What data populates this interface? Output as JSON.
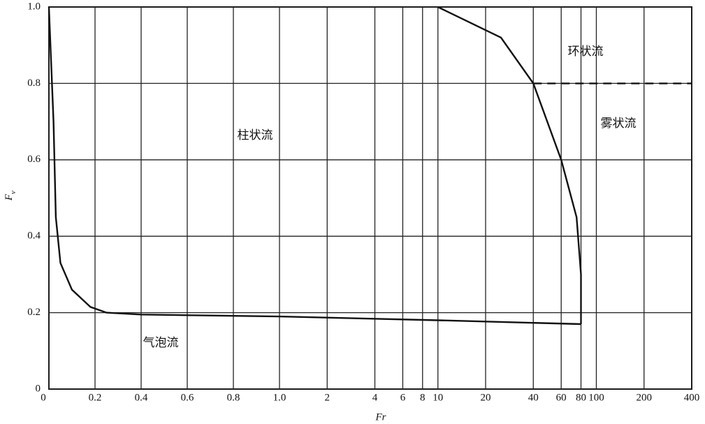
{
  "chart_data": {
    "type": "line",
    "xlabel": "Fr",
    "ylabel": {
      "main": "F",
      "sub": "v"
    },
    "xscale": "linear-log",
    "xlim": [
      0,
      400
    ],
    "xticks": [
      0,
      0.2,
      0.4,
      0.6,
      0.8,
      {
        "value": 1,
        "label": "1.0"
      },
      2,
      4,
      6,
      8,
      10,
      20,
      40,
      60,
      80,
      100,
      200,
      400
    ],
    "ylim": [
      0,
      1
    ],
    "yticks": [
      0,
      0.2,
      0.4,
      0.6,
      0.8,
      {
        "value": 1,
        "label": "1.0"
      }
    ],
    "grid": true,
    "color": "#111111",
    "lines": [
      {
        "style": "solid",
        "x": [
          0,
          0.02,
          0.03,
          0.05,
          0.1,
          0.18,
          0.25,
          0.4,
          1,
          10,
          80
        ],
        "y": [
          1.0,
          0.7,
          0.45,
          0.33,
          0.26,
          0.215,
          0.2,
          0.195,
          0.19,
          0.18,
          0.17
        ]
      },
      {
        "style": "solid",
        "x": [
          80,
          80,
          75,
          60,
          40,
          25,
          10
        ],
        "y": [
          0.17,
          0.3,
          0.45,
          0.6,
          0.8,
          0.92,
          1.0
        ]
      },
      {
        "style": "dashed",
        "x": [
          40,
          400
        ],
        "y": [
          0.8,
          0.8
        ]
      }
    ],
    "annotations": [
      "柱状流",
      "气泡流",
      "环状流",
      "雾状流"
    ]
  }
}
